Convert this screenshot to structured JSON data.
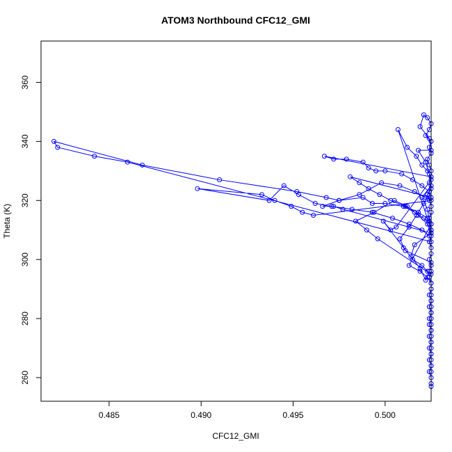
{
  "chart_data": {
    "type": "scatter",
    "title": "ATOM3 Northbound CFC12_GMI",
    "xlabel": "CFC12_GMI",
    "ylabel": "Theta (K)",
    "xlim": [
      0.4813,
      0.5025
    ],
    "ylim": [
      252,
      374
    ],
    "xticks": [
      0.485,
      0.49,
      0.495,
      0.5
    ],
    "xtick_labels": [
      "0.485",
      "0.490",
      "0.495",
      "0.500"
    ],
    "yticks": [
      260,
      280,
      300,
      320,
      340,
      360
    ],
    "ytick_labels": [
      "260",
      "280",
      "300",
      "320",
      "340",
      "360"
    ],
    "grid": false,
    "legend": "none",
    "marker": "open-circle",
    "line": "connected",
    "color": "#0000ff",
    "series": [
      {
        "name": "",
        "x": [
          0.5025,
          0.5025,
          0.5025,
          0.5024,
          0.5025,
          0.5025,
          0.5025,
          0.5024,
          0.5025,
          0.5025,
          0.5025,
          0.5024,
          0.5025,
          0.5025,
          0.5024,
          0.5025,
          0.5025,
          0.5025,
          0.5025,
          0.5024,
          0.5025,
          0.5025,
          0.5024,
          0.5025,
          0.5025,
          0.5024,
          0.5025,
          0.5025,
          0.5025,
          0.5024,
          0.5025,
          0.5025,
          0.5024,
          0.5023,
          0.5025,
          0.5024,
          0.5025,
          0.5025,
          0.5024,
          0.5023,
          0.5025,
          0.5024,
          0.5025,
          0.5022,
          0.5024,
          0.5025,
          0.5023,
          0.5021,
          0.5019,
          0.5024,
          0.5025,
          0.5018,
          0.5022,
          0.5024,
          0.5025,
          0.502,
          0.5023,
          0.5024,
          0.5025,
          0.5016,
          0.5014,
          0.5019,
          0.5022,
          0.5024,
          0.5025,
          0.5011,
          0.5008,
          0.5013,
          0.5017,
          0.5021,
          0.5024,
          0.5025,
          0.5006,
          0.5003,
          0.4999,
          0.501,
          0.5015,
          0.502,
          0.5023,
          0.5025,
          0.4996,
          0.499,
          0.4984,
          0.4994,
          0.5005,
          0.5012,
          0.5018,
          0.5023,
          0.5025,
          0.4977,
          0.4972,
          0.4966,
          0.4975,
          0.4986,
          0.4998,
          0.5008,
          0.5016,
          0.5022,
          0.5025,
          0.4961,
          0.4955,
          0.4949,
          0.494,
          0.4933,
          0.4898,
          0.4937,
          0.4945,
          0.4953,
          0.4962,
          0.4971,
          0.4982,
          0.4993,
          0.5004,
          0.5013,
          0.502,
          0.5024,
          0.5025,
          0.486,
          0.4842,
          0.4822,
          0.482,
          0.4868,
          0.491,
          0.4952,
          0.4968,
          0.4975,
          0.4988,
          0.4993,
          0.5,
          0.501,
          0.5016,
          0.5021,
          0.5024,
          0.5025,
          0.5007,
          0.5012,
          0.5017,
          0.502,
          0.5023,
          0.5025,
          0.4967,
          0.4972,
          0.4979,
          0.4988,
          0.4991,
          0.4995,
          0.5,
          0.5009,
          0.5015,
          0.502,
          0.5024,
          0.5025,
          0.4981,
          0.4986,
          0.4991,
          0.4997,
          0.5003,
          0.5011,
          0.5018,
          0.5023,
          0.5025,
          0.5013,
          0.5019,
          0.5023,
          0.5025,
          0.5025,
          0.5024,
          0.5025,
          0.5025,
          0.5025,
          0.5024,
          0.5025,
          0.5025,
          0.5024,
          0.5025,
          0.5025,
          0.5025,
          0.5024,
          0.5025,
          0.5025
        ],
        "y": [
          257,
          258,
          260,
          262,
          264,
          266,
          268,
          270,
          272,
          274,
          276,
          278,
          280,
          282,
          284,
          286,
          288,
          290,
          292,
          294,
          296,
          298,
          300,
          302,
          304,
          306,
          308,
          310,
          312,
          314,
          316,
          318,
          320,
          322,
          324,
          326,
          328,
          330,
          332,
          334,
          336,
          338,
          340,
          342,
          344,
          346,
          348,
          349,
          345,
          341,
          337,
          337,
          333,
          329,
          325,
          321,
          317,
          313,
          309,
          305,
          301,
          297,
          293,
          296,
          299,
          303,
          307,
          311,
          315,
          319,
          323,
          327,
          311,
          310,
          313,
          304,
          300,
          298,
          296,
          295,
          307,
          310,
          313,
          316,
          320,
          318,
          315,
          312,
          309,
          317,
          318,
          318,
          320,
          322,
          326,
          325,
          323,
          321,
          320,
          315,
          316,
          318,
          320,
          322,
          324,
          320,
          325,
          322,
          319,
          318,
          317,
          316,
          314,
          312,
          310,
          308,
          306,
          333,
          335,
          338,
          340,
          332,
          327,
          323,
          321,
          320,
          321,
          319,
          319,
          318,
          316,
          314,
          312,
          310,
          344,
          338,
          335,
          332,
          330,
          328,
          335,
          334,
          334,
          333,
          331,
          330,
          330,
          329,
          327,
          325,
          323,
          321,
          328,
          326,
          324,
          322,
          320,
          318,
          316,
          314,
          312,
          298,
          296,
          294,
          292,
          290,
          288,
          286,
          284,
          282,
          280,
          278,
          276,
          274,
          272,
          270,
          268,
          266,
          264,
          262
        ]
      }
    ]
  }
}
